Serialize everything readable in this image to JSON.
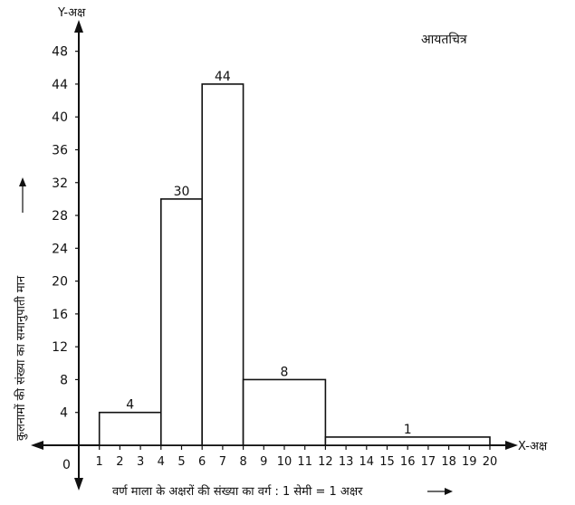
{
  "chart_data": {
    "type": "bar",
    "title": "आयतचित्र",
    "xlabel": "वर्ण माला के अक्षरों की संख्या का वर्ग : 1 सेमी = 1 अक्षर",
    "ylabel": "कुलनामों की संख्या का समानुपाती मान",
    "x_axis_name": "X-अक्ष",
    "y_axis_name": "Y-अक्ष",
    "origin_label": "0",
    "xlim": [
      0,
      20
    ],
    "ylim": [
      0,
      48
    ],
    "x_ticks": [
      1,
      2,
      3,
      4,
      5,
      6,
      7,
      8,
      9,
      10,
      11,
      12,
      13,
      14,
      15,
      16,
      17,
      18,
      19,
      20
    ],
    "y_ticks": [
      4,
      8,
      12,
      16,
      20,
      24,
      28,
      32,
      36,
      40,
      44,
      48
    ],
    "bars": [
      {
        "x_start": 1,
        "x_end": 4,
        "value": 4,
        "label": "4"
      },
      {
        "x_start": 4,
        "x_end": 6,
        "value": 30,
        "label": "30"
      },
      {
        "x_start": 6,
        "x_end": 8,
        "value": 44,
        "label": "44"
      },
      {
        "x_start": 8,
        "x_end": 12,
        "value": 8,
        "label": "8"
      },
      {
        "x_start": 12,
        "x_end": 20,
        "value": 1,
        "label": "1"
      }
    ],
    "grid": false,
    "legend": false
  },
  "colors": {
    "ink": "#111111",
    "background": "#ffffff"
  }
}
